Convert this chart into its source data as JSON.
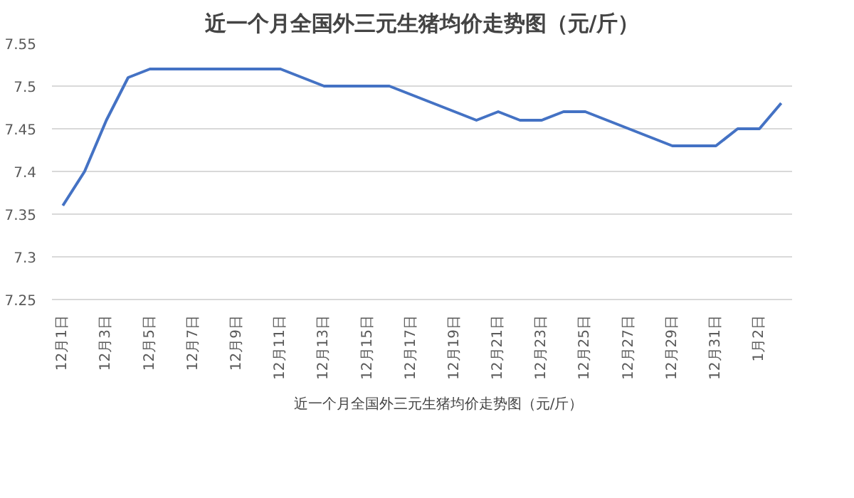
{
  "chart_data": {
    "type": "line",
    "title": "近一个月全国外三元生猪均价走势图（元/斤）",
    "categories": [
      "12月1日",
      null,
      "12月3日",
      null,
      "12月5日",
      null,
      "12月7日",
      null,
      "12月9日",
      null,
      "12月11日",
      null,
      "12月13日",
      null,
      "12月15日",
      null,
      "12月17日",
      null,
      "12月19日",
      null,
      "12月21日",
      null,
      "12月23日",
      null,
      "12月25日",
      null,
      "12月27日",
      null,
      "12月29日",
      null,
      "12月31日",
      null,
      "1月2日",
      null
    ],
    "series": [
      {
        "name": "近一个月全国外三元生猪均价走势图（元/斤）",
        "color": "#4472c4",
        "values": [
          7.36,
          7.4,
          7.46,
          7.51,
          7.52,
          7.52,
          7.52,
          7.52,
          7.52,
          7.52,
          7.52,
          7.51,
          7.5,
          7.5,
          7.5,
          7.5,
          7.49,
          7.48,
          7.47,
          7.46,
          7.47,
          7.46,
          7.46,
          7.47,
          7.47,
          7.46,
          7.45,
          7.44,
          7.43,
          7.43,
          7.43,
          7.45,
          7.45,
          7.48
        ]
      }
    ],
    "ylim": [
      7.25,
      7.55
    ],
    "yticks": [
      7.25,
      7.3,
      7.35,
      7.4,
      7.45,
      7.5,
      7.55
    ],
    "grid": "y",
    "legend": "bottom",
    "marker": "none",
    "line_style": "solid"
  }
}
